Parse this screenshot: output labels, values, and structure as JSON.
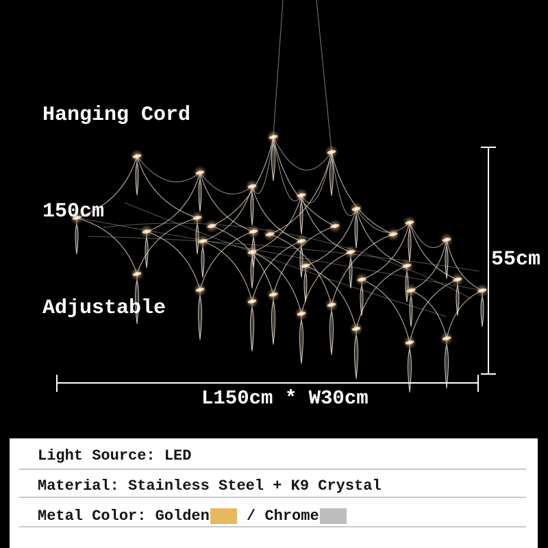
{
  "annotations": {
    "hanging_cord_lines": [
      "Hanging Cord",
      "150cm",
      "Adjustable"
    ],
    "height_label": "55cm",
    "size_label": "L150cm * W30cm"
  },
  "specs": {
    "light_source": "Light Source: LED",
    "material": "Material: Stainless Steel + K9 Crystal",
    "metal_color": {
      "prefix": "Metal Color: Golden",
      "separator": " / ",
      "chrome_label": "Chrome",
      "golden_hex": "#e6b95c",
      "chrome_hex": "#bdbdbd"
    }
  },
  "colors": {
    "background": "#000000",
    "annotation_text": "#ffffff",
    "dimension_line": "#ffffff",
    "panel_background": "#ffffff",
    "spec_text": "#141414",
    "divider": "#c9c9c9"
  }
}
